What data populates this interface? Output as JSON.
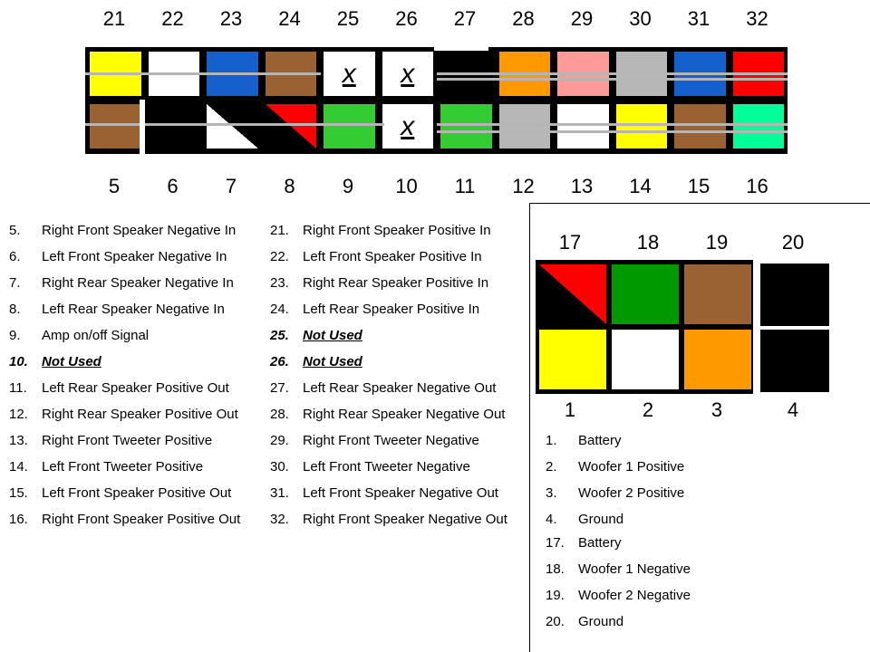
{
  "main_connector": {
    "top_numbers": [
      "21",
      "22",
      "23",
      "24",
      "25",
      "26",
      "27",
      "28",
      "29",
      "30",
      "31",
      "32"
    ],
    "bottom_numbers": [
      "5",
      "6",
      "7",
      "8",
      "9",
      "10",
      "11",
      "12",
      "13",
      "14",
      "15",
      "16"
    ],
    "top_pins": [
      {
        "color": "#ffff00"
      },
      {
        "color": "#ffffff"
      },
      {
        "color": "#1560cc"
      },
      {
        "color": "#9a6233"
      },
      {
        "color": "#ffffff",
        "mark": "x"
      },
      {
        "color": "#ffffff",
        "mark": "x"
      },
      {
        "color": "#000000"
      },
      {
        "color": "#ff9900"
      },
      {
        "color": "#ff9a9a"
      },
      {
        "color": "#b7b7b7"
      },
      {
        "color": "#1560cc"
      },
      {
        "color": "#ff0000"
      }
    ],
    "bottom_pins": [
      {
        "color": "#9a6233"
      },
      {
        "color": "#000000"
      },
      {
        "color": "#ffffff",
        "diag": "#000000"
      },
      {
        "color": "#000000",
        "diag": "#ff0000"
      },
      {
        "color": "#33cc33"
      },
      {
        "color": "#ffffff",
        "mark": "x"
      },
      {
        "color": "#33cc33"
      },
      {
        "color": "#b7b7b7"
      },
      {
        "color": "#ffffff"
      },
      {
        "color": "#ffff00"
      },
      {
        "color": "#9a6233"
      },
      {
        "color": "#00ff99"
      }
    ]
  },
  "legend_left": [
    {
      "n": "5.",
      "text": "Right Front Speaker Negative In"
    },
    {
      "n": "6.",
      "text": "Left Front Speaker Negative In"
    },
    {
      "n": "7.",
      "text": "Right Rear Speaker Negative In"
    },
    {
      "n": "8.",
      "text": "Left Rear Speaker Negative In"
    },
    {
      "n": "9.",
      "text": "Amp on/off Signal"
    },
    {
      "n": "10.",
      "text": "Not Used",
      "bold": true
    },
    {
      "n": "11.",
      "text": "Left Rear Speaker Positive Out"
    },
    {
      "n": "12.",
      "text": "Right Rear Speaker Positive Out"
    },
    {
      "n": "13.",
      "text": "Right Front Tweeter Positive"
    },
    {
      "n": "14.",
      "text": "Left Front Tweeter Positive"
    },
    {
      "n": "15.",
      "text": "Left Front Speaker Positive Out"
    },
    {
      "n": "16.",
      "text": "Right Front Speaker Positive Out"
    }
  ],
  "legend_middle": [
    {
      "n": "21.",
      "text": "Right Front Speaker Positive In"
    },
    {
      "n": "22.",
      "text": "Left Front Speaker Positive In"
    },
    {
      "n": "23.",
      "text": "Right Rear Speaker Positive In"
    },
    {
      "n": "24.",
      "text": "Left Rear Speaker Positive In"
    },
    {
      "n": "25.",
      "text": "Not Used",
      "bold": true
    },
    {
      "n": "26.",
      "text": "Not Used",
      "bold": true
    },
    {
      "n": "27.",
      "text": "Left Rear Speaker Negative Out"
    },
    {
      "n": "28.",
      "text": "Right Rear Speaker Negative Out"
    },
    {
      "n": "29.",
      "text": "Right Front Tweeter Negative"
    },
    {
      "n": "30.",
      "text": "Left Front Tweeter Negative"
    },
    {
      "n": "31.",
      "text": "Left Front Speaker Negative Out"
    },
    {
      "n": "32.",
      "text": "Right Front Speaker Negative Out"
    }
  ],
  "power_connector": {
    "top_numbers": [
      "17",
      "18",
      "19",
      "20"
    ],
    "bottom_numbers": [
      "1",
      "2",
      "3",
      "4"
    ],
    "top_pins": [
      {
        "color": "#000000",
        "diag": "#ff0000"
      },
      {
        "color": "#009900"
      },
      {
        "color": "#9a6233"
      },
      {
        "color": "#000000"
      }
    ],
    "bottom_pins": [
      {
        "color": "#ffff00"
      },
      {
        "color": "#ffffff"
      },
      {
        "color": "#ff9900"
      },
      {
        "color": "#000000"
      }
    ]
  },
  "legend_power_a": [
    {
      "n": "1.",
      "text": "Battery"
    },
    {
      "n": "2.",
      "text": "Woofer 1 Positive"
    },
    {
      "n": "3.",
      "text": "Woofer 2 Positive"
    },
    {
      "n": "4.",
      "text": "Ground"
    }
  ],
  "legend_power_b": [
    {
      "n": "17.",
      "text": "Battery"
    },
    {
      "n": "18.",
      "text": "Woofer 1 Negative"
    },
    {
      "n": "19.",
      "text": "Woofer 2 Negative"
    },
    {
      "n": "20.",
      "text": "Ground"
    }
  ]
}
